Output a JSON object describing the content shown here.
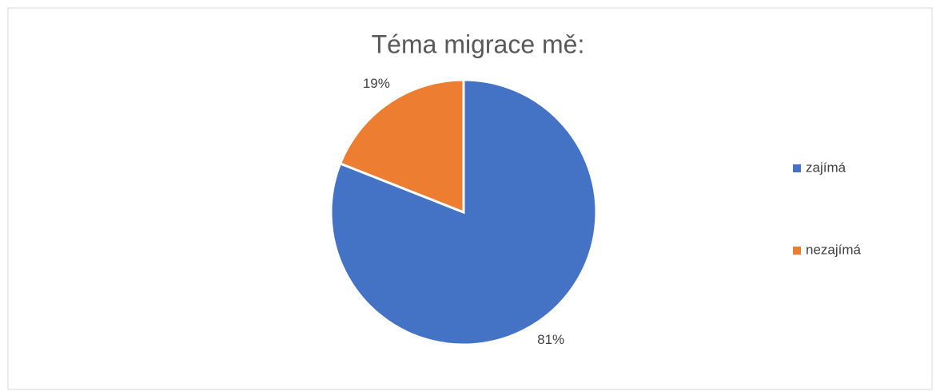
{
  "chart_data": {
    "type": "pie",
    "title": "Téma migrace mě:",
    "categories": [
      "zajímá",
      "nezajímá"
    ],
    "values": [
      81,
      19
    ],
    "value_labels": [
      "81%",
      "19%"
    ],
    "colors": [
      "#4472c4",
      "#ed7d31"
    ],
    "legend": "right"
  }
}
